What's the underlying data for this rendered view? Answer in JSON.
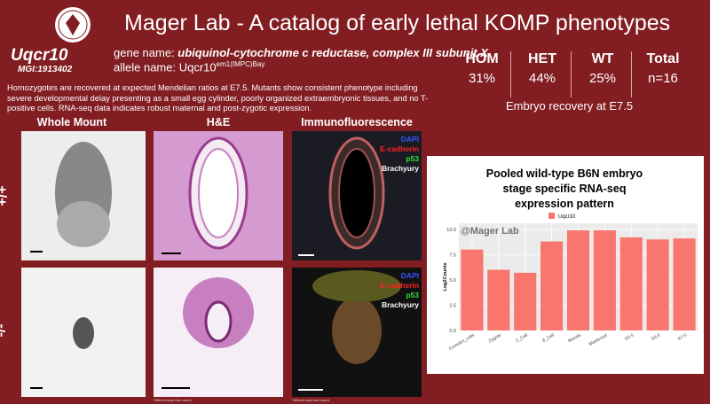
{
  "header": {
    "title": "Mager Lab - A catalog of early lethal KOMP phenotypes"
  },
  "gene": {
    "symbol": "Uqcr10",
    "mgi": "MGI:1913402",
    "gene_name_label": "gene name:",
    "gene_name": "ubiquinol-cytochrome c reductase, complex III subunit X",
    "allele_label": "allele name:",
    "allele_base": "Uqcr10",
    "allele_sup": "em1(IMPC)Bay"
  },
  "stats": {
    "columns": [
      {
        "label": "HOM",
        "value": "31%"
      },
      {
        "label": "HET",
        "value": "44%"
      },
      {
        "label": "WT",
        "value": "25%"
      },
      {
        "label": "Total",
        "value": "n=16"
      }
    ],
    "caption": "Embryo recovery at E7.5"
  },
  "description": "Homozygotes are recovered at expected Mendelian ratios at E7.5. Mutants show consistent phenotype including severe developmental delay presenting as a small egg cylinder, poorly organized extraembryonic tissues, and no T-positive cells. RNA-seq data indicates robust maternal and post-zygotic expression.",
  "panels": {
    "columns": [
      "Whole Mount",
      "H&E",
      "Immunofluorescence"
    ],
    "rows": [
      "+/+",
      "-/-"
    ],
    "if_labels": [
      "DAPI",
      "E-cadherin",
      "p53",
      "Brachyury"
    ],
    "scale_note": "*different scale than control"
  },
  "chart_data": {
    "type": "bar",
    "title": "Pooled wild-type B6N embryo stage specific RNA-seq expression pattern",
    "watermark": "@Mager Lab",
    "ylabel": "Log2Counts",
    "categories": [
      "Cumulus_cells",
      "Zygote",
      "2_Cell",
      "8_Cell",
      "Morula",
      "Blastocyst",
      "E5.5",
      "E6.5",
      "E7.5"
    ],
    "series": [
      {
        "name": "Uqcr10",
        "color": "#f8766d",
        "values": [
          8.0,
          6.0,
          5.7,
          8.8,
          9.9,
          9.9,
          9.2,
          9.0,
          9.1
        ]
      }
    ],
    "ylim": [
      0,
      10.6
    ],
    "yticks": [
      {
        "value": 0,
        "label": "0.0"
      },
      {
        "value": 2.5,
        "label": "2.5"
      },
      {
        "value": 5,
        "label": "5.0"
      },
      {
        "value": 7.5,
        "label": "7.5"
      },
      {
        "value": 10,
        "label": "10.0"
      }
    ],
    "grid": true
  }
}
